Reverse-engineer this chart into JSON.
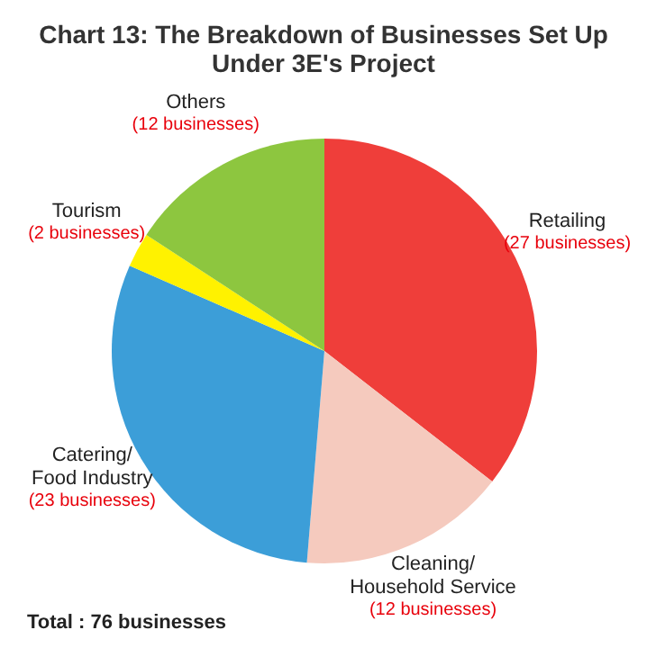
{
  "chart_data": {
    "type": "pie",
    "title": "Chart 13: The Breakdown of Businesses Set Up\nUnder 3E's Project",
    "categories": [
      "Retailing",
      "Cleaning/\nHousehold Service",
      "Catering/\nFood Industry",
      "Tourism",
      "Others"
    ],
    "values": [
      27,
      12,
      23,
      2,
      12
    ],
    "value_labels": [
      "(27 businesses)",
      "(12 businesses)",
      "(23 businesses)",
      "(2 businesses)",
      "(12 businesses)"
    ],
    "colors": [
      "#ef3e3a",
      "#f5cabe",
      "#3c9ed8",
      "#fff200",
      "#8dc63f"
    ],
    "annotations": [
      "Total : 76 businesses"
    ],
    "legend": false
  }
}
